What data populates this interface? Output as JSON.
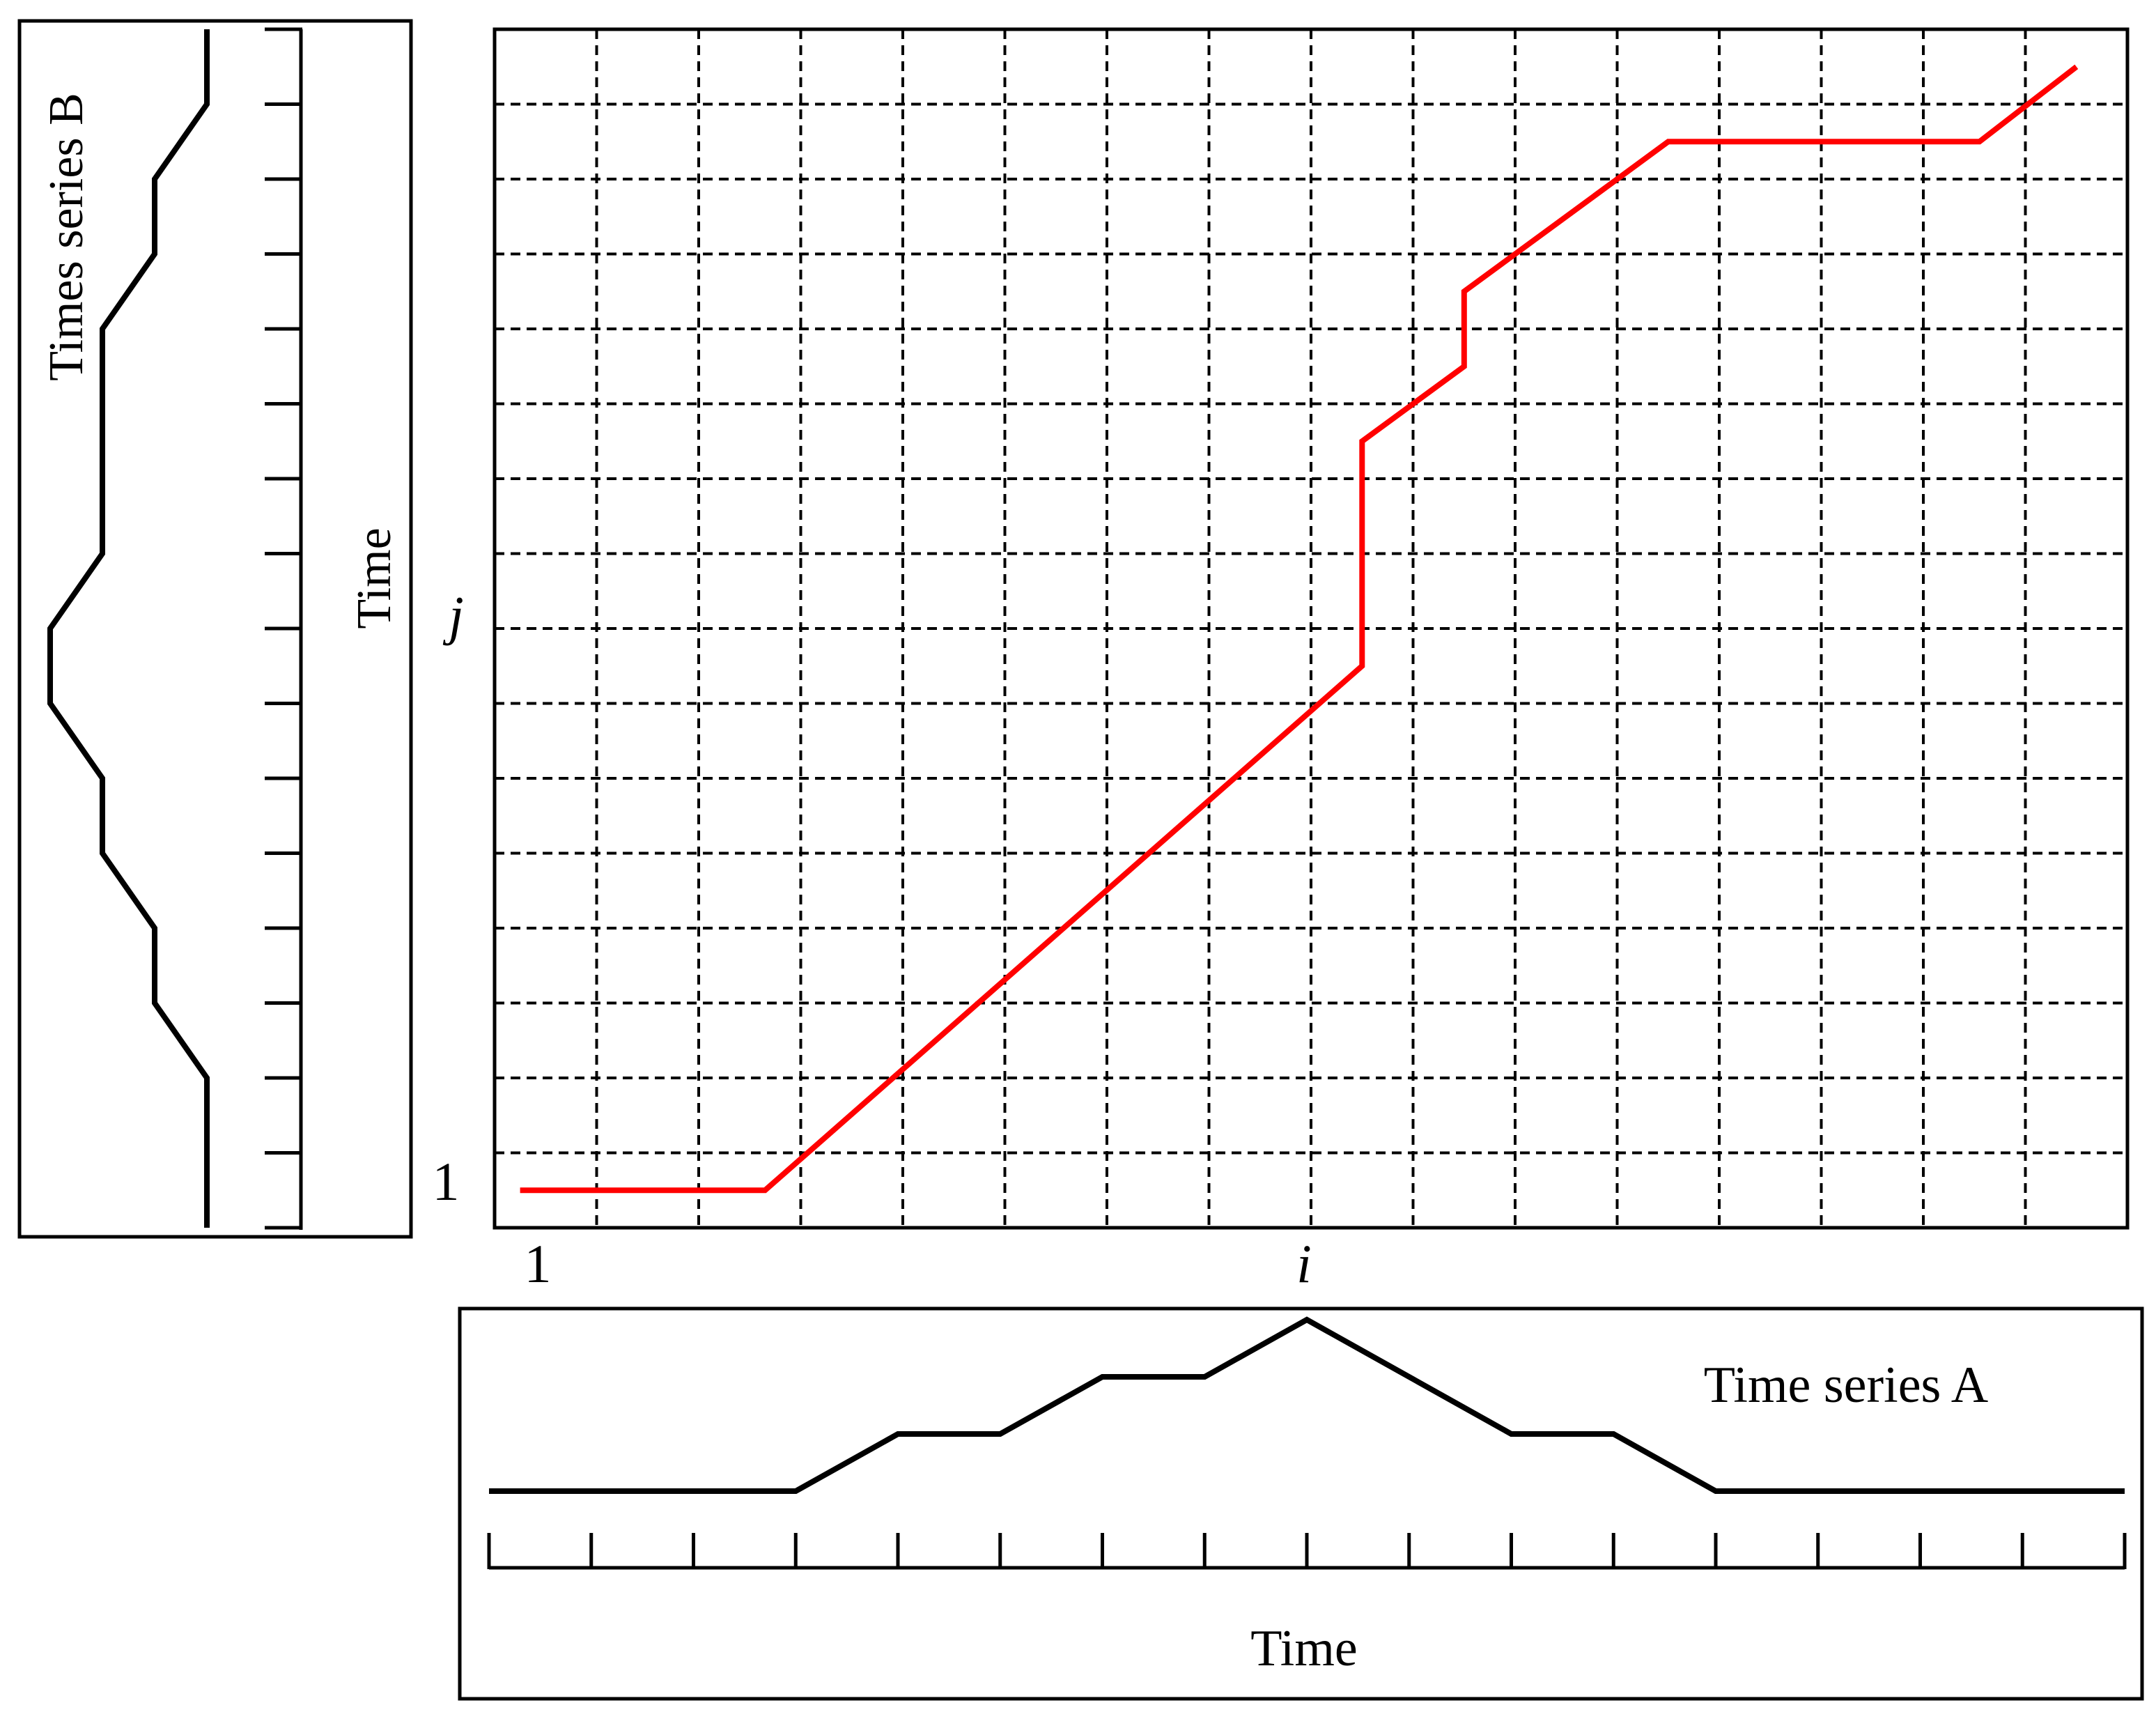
{
  "labels": {
    "series_b_title": "Times series B",
    "series_b_axis": "Time",
    "series_a_title": "Time series A",
    "series_a_axis": "Time",
    "grid_j": "j",
    "grid_j_start": "1",
    "grid_i": "i",
    "grid_i_start": "1"
  },
  "colors": {
    "warping_path": "#ff0000",
    "series": "#000000",
    "grid": "#000000"
  },
  "chart_data": {
    "type": "line",
    "grid": {
      "columns": 16,
      "rows": 16,
      "dashed": true
    },
    "series_a": {
      "points": [
        [
          0,
          1
        ],
        [
          3,
          1
        ],
        [
          4,
          2
        ],
        [
          5,
          2
        ],
        [
          6,
          3
        ],
        [
          7,
          3
        ],
        [
          8,
          4
        ],
        [
          10,
          2
        ],
        [
          11,
          2
        ],
        [
          12,
          1
        ],
        [
          16,
          1
        ]
      ],
      "x_ticks": 16
    },
    "series_b": {
      "points": [
        [
          0,
          3
        ],
        [
          1,
          3
        ],
        [
          2,
          2
        ],
        [
          3,
          2
        ],
        [
          4,
          1
        ],
        [
          7,
          1
        ],
        [
          8,
          0
        ],
        [
          9,
          0
        ],
        [
          10,
          1
        ],
        [
          11,
          1
        ],
        [
          12,
          2
        ],
        [
          13,
          2
        ],
        [
          14,
          3
        ],
        [
          16,
          3
        ]
      ],
      "y_ticks": 16
    },
    "warping_path": {
      "points": [
        [
          0.25,
          0.5
        ],
        [
          2.65,
          0.5
        ],
        [
          8.5,
          7.5
        ],
        [
          8.5,
          10.5
        ],
        [
          9.5,
          11.5
        ],
        [
          9.5,
          12.5
        ],
        [
          11.5,
          14.5
        ],
        [
          14.55,
          14.5
        ],
        [
          15.5,
          15.5
        ]
      ]
    }
  }
}
